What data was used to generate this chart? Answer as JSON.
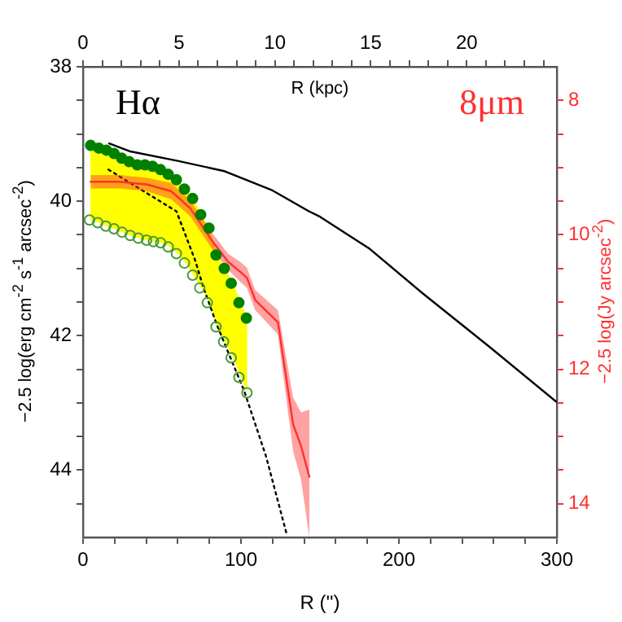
{
  "chart_data": {
    "type": "line",
    "xlabel": "R ('')",
    "ylabel": "−2.5 log(erg cm$^{-2}$ s$^{-1}$ arcsec$^{-2}$)",
    "y2label": "−2.5 log(Jy arcsec$^{-2}$)",
    "x2label": "R (kpc)",
    "annotations": [
      "Hα",
      "8μm"
    ],
    "xlim": [
      0,
      300
    ],
    "xticks": [
      0,
      {
        "value": 20,
        "label": null
      },
      {
        "value": 40,
        "label": null
      },
      {
        "value": 60,
        "label": null
      },
      {
        "value": 80,
        "label": null
      },
      100,
      {
        "value": 120,
        "label": null
      },
      {
        "value": 140,
        "label": null
      },
      {
        "value": 160,
        "label": null
      },
      {
        "value": 180,
        "label": null
      },
      200,
      {
        "value": 220,
        "label": null
      },
      {
        "value": 240,
        "label": null
      },
      {
        "value": 260,
        "label": null
      },
      {
        "value": 280,
        "label": null
      },
      300
    ],
    "x2lim": [
      0,
      24.7
    ],
    "x2ticks": [
      0,
      {
        "value": 1,
        "label": null
      },
      {
        "value": 2,
        "label": null
      },
      {
        "value": 3,
        "label": null
      },
      {
        "value": 4,
        "label": null
      },
      5,
      {
        "value": 6,
        "label": null
      },
      {
        "value": 7,
        "label": null
      },
      {
        "value": 8,
        "label": null
      },
      {
        "value": 9,
        "label": null
      },
      10,
      {
        "value": 11,
        "label": null
      },
      {
        "value": 12,
        "label": null
      },
      {
        "value": 13,
        "label": null
      },
      {
        "value": 14,
        "label": null
      },
      15,
      {
        "value": 16,
        "label": null
      },
      {
        "value": 17,
        "label": null
      },
      {
        "value": 18,
        "label": null
      },
      {
        "value": 19,
        "label": null
      },
      20,
      {
        "value": 21,
        "label": null
      },
      {
        "value": 22,
        "label": null
      },
      {
        "value": 23,
        "label": null
      },
      {
        "value": 24,
        "label": null
      }
    ],
    "ylim": [
      45,
      38
    ],
    "yticks": [
      38,
      {
        "value": 38.5,
        "label": null
      },
      {
        "value": 39,
        "label": null
      },
      {
        "value": 39.5,
        "label": null
      },
      40,
      {
        "value": 40.5,
        "label": null
      },
      {
        "value": 41,
        "label": null
      },
      {
        "value": 41.5,
        "label": null
      },
      42,
      {
        "value": 42.5,
        "label": null
      },
      {
        "value": 43,
        "label": null
      },
      {
        "value": 43.5,
        "label": null
      },
      44,
      {
        "value": 44.5,
        "label": null
      }
    ],
    "y2lim": [
      14.5,
      7.5
    ],
    "y2ticks": [
      8,
      {
        "value": 8.5,
        "label": null
      },
      {
        "value": 9,
        "label": null
      },
      {
        "value": 9.5,
        "label": null
      },
      10,
      {
        "value": 10.5,
        "label": null
      },
      {
        "value": 11,
        "label": null
      },
      {
        "value": 11.5,
        "label": null
      },
      12,
      {
        "value": 12.5,
        "label": null
      },
      {
        "value": 13,
        "label": null
      },
      {
        "value": 13.5,
        "label": null
      },
      14
    ],
    "grid": false,
    "legend": false,
    "series": [
      {
        "type": "area",
        "color": "#ffff00",
        "x": [
          4.5,
          10,
          15,
          20,
          25,
          30,
          35,
          40,
          45,
          50,
          55,
          60,
          65,
          70,
          75,
          80,
          85,
          90,
          95,
          100,
          104
        ],
        "values": [
          null,
          null,
          null,
          null,
          null,
          null,
          null,
          null,
          null,
          null,
          null,
          null,
          null,
          null,
          null,
          null,
          null,
          null,
          null,
          null,
          null
        ],
        "lower": [
          39.17,
          39.21,
          39.24,
          39.29,
          39.36,
          39.41,
          39.46,
          39.46,
          39.48,
          39.53,
          39.6,
          39.68,
          39.82,
          39.96,
          40.2,
          40.4,
          40.8,
          41.0,
          41.22,
          41.51,
          41.74
        ],
        "upper": [
          40.28,
          40.32,
          40.37,
          40.41,
          40.46,
          40.51,
          40.55,
          40.58,
          40.6,
          40.62,
          40.68,
          40.78,
          40.92,
          41.1,
          41.29,
          41.51,
          41.87,
          42.09,
          42.33,
          42.62,
          42.85
        ]
      },
      {
        "type": "line",
        "color": "#000000",
        "marker": "none",
        "line_style": "solid",
        "x": [
          16.5,
          30,
          60,
          89,
          120,
          143,
          150,
          181,
          215,
          257,
          300
        ],
        "values": [
          39.14,
          39.26,
          39.4,
          39.55,
          39.84,
          40.15,
          40.23,
          40.7,
          41.37,
          42.16,
          42.99
        ]
      },
      {
        "type": "line",
        "color": "#000000",
        "marker": "none",
        "line_style": "dotted",
        "x": [
          16.1,
          59.1,
          71,
          76.3,
          84.9,
          102,
          115.8,
          128.9
        ],
        "values": [
          39.53,
          40.15,
          40.88,
          41.29,
          41.85,
          42.82,
          43.79,
          44.95
        ]
      },
      {
        "type": "line",
        "axis": "y2",
        "color": "#ff3030",
        "marker": "none",
        "line_style": "solid",
        "x": [
          4.8,
          23,
          40.2,
          55.7,
          67.7,
          81.4,
          91.8,
          100,
          103.8,
          109,
          123.4,
          133,
          138,
          143.3
        ],
        "values": [
          9.21,
          9.21,
          9.25,
          9.35,
          9.6,
          10.08,
          10.4,
          10.56,
          10.64,
          10.97,
          11.3,
          12.82,
          13.14,
          13.6
        ],
        "lower": [
          9.11,
          9.11,
          9.15,
          9.23,
          9.48,
          9.96,
          10.28,
          10.41,
          10.49,
          10.82,
          11.12,
          12.42,
          12.64,
          12.6
        ],
        "upper": [
          9.31,
          9.31,
          9.35,
          9.47,
          9.72,
          10.2,
          10.52,
          10.71,
          10.79,
          11.12,
          11.48,
          13.22,
          13.64,
          14.5
        ]
      },
      {
        "type": "scatter",
        "color": "#008000",
        "marker": "circle",
        "x": [
          4.8,
          10,
          14.8,
          19.6,
          24.4,
          29.2,
          34.3,
          39.2,
          44,
          49,
          53.9,
          59.1,
          64.2,
          69.4,
          74.5,
          79.7,
          84.2,
          89.4,
          93.8,
          98.7,
          103.4
        ],
        "values": [
          39.17,
          39.21,
          39.24,
          39.29,
          39.36,
          39.41,
          39.46,
          39.46,
          39.48,
          39.53,
          39.6,
          39.68,
          39.82,
          39.96,
          40.2,
          40.4,
          40.8,
          41.0,
          41.22,
          41.51,
          41.74
        ]
      },
      {
        "type": "scatter",
        "color": "#4a9a3a",
        "marker": "open circle",
        "x": [
          4.1,
          9.3,
          14.4,
          19.6,
          24.7,
          29.9,
          35,
          40.2,
          44.6,
          49.2,
          53.9,
          59.1,
          64.2,
          69.4,
          73.9,
          78.7,
          84.2,
          89,
          93.8,
          98.7,
          103.8
        ],
        "values": [
          40.28,
          40.32,
          40.37,
          40.41,
          40.46,
          40.51,
          40.55,
          40.58,
          40.6,
          40.62,
          40.68,
          40.78,
          40.92,
          41.1,
          41.29,
          41.51,
          41.87,
          42.09,
          42.33,
          42.62,
          42.85
        ]
      }
    ]
  }
}
